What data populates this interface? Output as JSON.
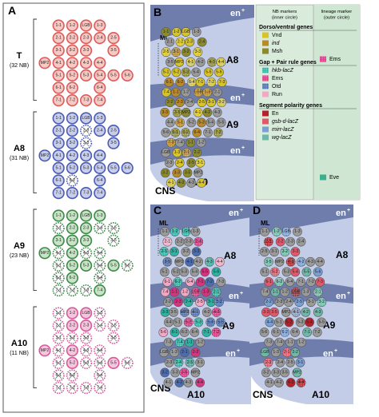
{
  "panels": {
    "a": {
      "letter": "A",
      "segments": [
        {
          "name": "T",
          "count": "(32 NB)",
          "color": "#e05a5a",
          "fill": "#f6c9c4"
        },
        {
          "name": "A8",
          "count": "(31 NB)",
          "color": "#4a5bb5",
          "fill": "#c8cdea"
        },
        {
          "name": "A9",
          "count": "(23 NB)",
          "color": "#3c8a48",
          "fill": "#c8e3c6"
        },
        {
          "name": "A10",
          "count": "(11 NB)",
          "color": "#d65b9a",
          "fill": "#f4c6de"
        }
      ],
      "nb_labels": [
        "1-1",
        "1-2",
        "LGB",
        "1-3",
        "2-1",
        "2-2",
        "2-3",
        "2-4",
        "2-5",
        "3-1",
        "3-2",
        "3-3",
        "3-5",
        "MP2",
        "4-1",
        "4-2",
        "4-3",
        "4-4",
        "5-1",
        "5-2",
        "5-3",
        "5-4",
        "5-5",
        "5-6",
        "6-1",
        "6-2",
        "6-4",
        "7-1",
        "7-2",
        "7-3",
        "7-4"
      ]
    },
    "b": {
      "letter": "B",
      "ml": "ML",
      "en_label": "en",
      "seg_labels": [
        "A8",
        "A9",
        "A10"
      ],
      "cns": "CNS"
    },
    "c": {
      "letter": "C",
      "ml": "ML",
      "en_label": "en",
      "seg_labels": [
        "A8",
        "A9",
        "A10"
      ],
      "cns": "CNS"
    },
    "d": {
      "letter": "D",
      "ml": "ML",
      "en_label": "en",
      "seg_labels": [
        "A8",
        "A9",
        "A10"
      ],
      "cns": "CNS"
    }
  },
  "legend": {
    "col1_header": "NB markers\n(inner circle)",
    "col2_header": "lineage marker\n(outer circle)",
    "groups": [
      {
        "title": "Dorso/ventral genes",
        "items": [
          {
            "label": "Vnd",
            "color": "#d6c42a"
          },
          {
            "label": "ind",
            "color": "#b88a28",
            "italic": true
          },
          {
            "label": "Msh",
            "color": "#8c8a2e"
          }
        ]
      },
      {
        "title": "Gap + Pair rule genes",
        "items": [
          {
            "label": "hkb-lacZ",
            "color": "#2fb2a2",
            "italic": true,
            "pattern": true
          },
          {
            "label": "Ems",
            "color": "#d5357f",
            "pattern": true
          },
          {
            "label": "Otd",
            "color": "#4a6db0",
            "pattern": true
          },
          {
            "label": "Run",
            "color": "#f2a7c4"
          }
        ]
      },
      {
        "title": "Segment polarity genes",
        "items": [
          {
            "label": "En",
            "color": "#b5222a"
          },
          {
            "label": "gsb-d-lacZ",
            "color": "#e0586a",
            "italic": true
          },
          {
            "label": "mirr-lacZ",
            "color": "#7a9fd2",
            "italic": true
          },
          {
            "label": "wg-lacZ",
            "color": "#6fb8a8",
            "italic": true
          }
        ]
      }
    ],
    "lineage": [
      {
        "label": "Ems",
        "color": "#d5357f"
      },
      {
        "label": "Eve",
        "color": "#3cb08c"
      }
    ]
  },
  "colors": {
    "bg_embryo": "#c3cde8",
    "band": "#5f6fa0",
    "legend_bg": "#d9ecdc",
    "gray_nb": "#9a9a9a"
  }
}
